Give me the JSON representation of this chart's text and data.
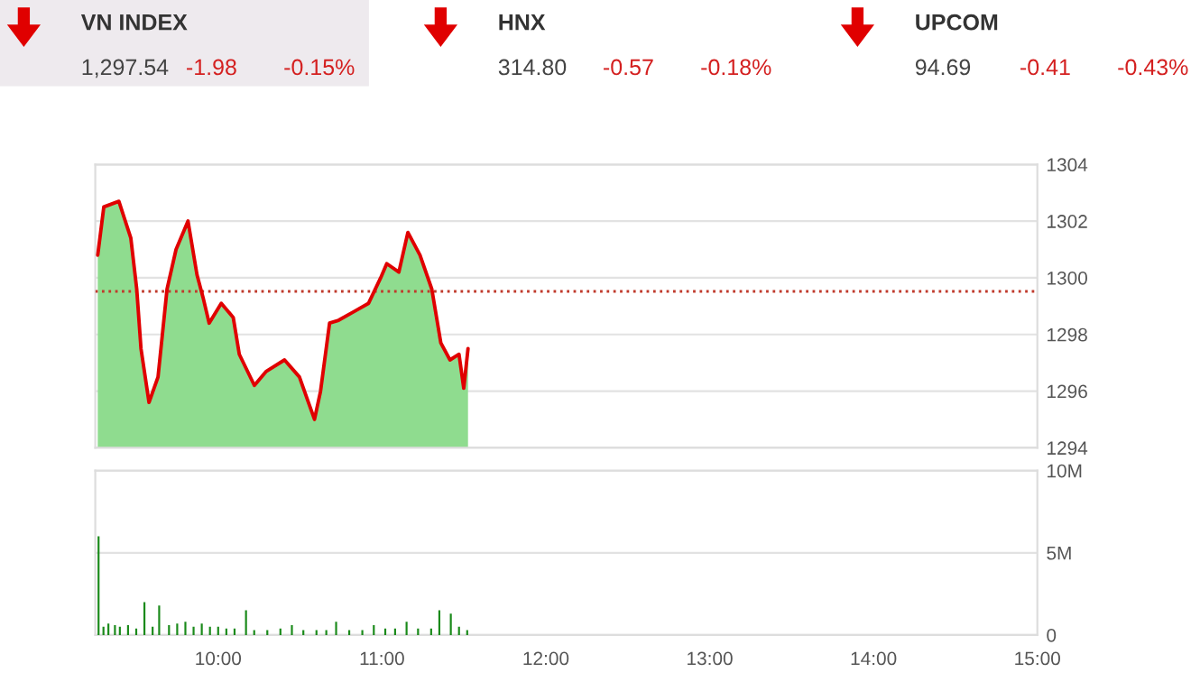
{
  "chart_data": [
    {
      "type": "other",
      "annotations": [
        "VN INDEX",
        "1,297.54",
        "-1.98",
        "-0.15%",
        "HNX",
        "314.80",
        "-0.57",
        "-0.18%",
        "UPCOM",
        "94.69",
        "-0.41",
        "-0.43%"
      ]
    },
    {
      "type": "area",
      "x": [
        9.265,
        9.302,
        9.394,
        9.467,
        9.503,
        9.529,
        9.578,
        9.633,
        9.688,
        9.743,
        9.816,
        9.871,
        9.908,
        9.945,
        10.019,
        10.092,
        10.129,
        10.221,
        10.294,
        10.405,
        10.496,
        10.551,
        10.588,
        10.625,
        10.68,
        10.735,
        10.827,
        10.918,
        10.992,
        11.029,
        11.103,
        11.158,
        11.232,
        11.304,
        11.359,
        11.415,
        11.47,
        11.499,
        11.525
      ],
      "series": [
        {
          "type": "area",
          "color": "#8fdc8f",
          "values": [
            1300.8,
            1302.5,
            1302.7,
            1301.4,
            1299.6,
            1297.5,
            1295.6,
            1296.5,
            1299.6,
            1301.0,
            1302.0,
            1300.1,
            1299.3,
            1298.4,
            1299.1,
            1298.6,
            1297.3,
            1296.2,
            1296.7,
            1297.1,
            1296.5,
            1295.6,
            1295.0,
            1296.0,
            1298.4,
            1298.5,
            1298.8,
            1299.1,
            1300.0,
            1300.5,
            1300.2,
            1301.6,
            1300.8,
            1299.6,
            1297.7,
            1297.1,
            1297.3,
            1296.1,
            1297.5
          ]
        },
        {
          "type": "line",
          "color": "#e00000",
          "values": [
            1300.8,
            1302.5,
            1302.7,
            1301.4,
            1299.6,
            1297.5,
            1295.6,
            1296.5,
            1299.6,
            1301.0,
            1302.0,
            1300.1,
            1299.3,
            1298.4,
            1299.1,
            1298.6,
            1297.3,
            1296.2,
            1296.7,
            1297.1,
            1296.5,
            1295.6,
            1295.0,
            1296.0,
            1298.4,
            1298.5,
            1298.8,
            1299.1,
            1300.0,
            1300.5,
            1300.2,
            1301.6,
            1300.8,
            1299.6,
            1297.7,
            1297.1,
            1297.3,
            1296.1,
            1297.5
          ]
        }
      ],
      "xlim": [
        9.25,
        15
      ],
      "ylim": [
        1294,
        1304
      ],
      "yticks": [
        1294,
        1296,
        1298,
        1300,
        1302,
        1304
      ],
      "tick_labels": "y",
      "grid": "y",
      "ref_lines": [
        {
          "axis": "y",
          "value": 1299.52,
          "color": "#c0392b",
          "line_style": "dotted"
        }
      ]
    },
    {
      "type": "bar",
      "x": [
        9.27,
        9.3,
        9.33,
        9.37,
        9.4,
        9.45,
        9.5,
        9.55,
        9.6,
        9.64,
        9.7,
        9.75,
        9.8,
        9.85,
        9.9,
        9.95,
        10.0,
        10.05,
        10.1,
        10.17,
        10.22,
        10.3,
        10.38,
        10.45,
        10.52,
        10.6,
        10.66,
        10.72,
        10.8,
        10.88,
        10.95,
        11.02,
        11.08,
        11.15,
        11.22,
        11.3,
        11.35,
        11.42,
        11.47,
        11.52
      ],
      "series": [
        {
          "color": "#1a8a1a",
          "values": [
            6.0,
            0.5,
            0.7,
            0.6,
            0.5,
            0.6,
            0.4,
            2.0,
            0.5,
            1.8,
            0.6,
            0.7,
            0.8,
            0.5,
            0.7,
            0.5,
            0.5,
            0.4,
            0.4,
            1.5,
            0.3,
            0.3,
            0.4,
            0.6,
            0.3,
            0.3,
            0.3,
            0.8,
            0.3,
            0.3,
            0.6,
            0.4,
            0.4,
            0.8,
            0.4,
            0.4,
            1.5,
            1.3,
            0.5,
            0.3
          ]
        }
      ],
      "xlim": [
        9.25,
        15
      ],
      "xticks": [
        {
          "value": 10,
          "label": "10:00"
        },
        {
          "value": 11,
          "label": "11:00"
        },
        {
          "value": 12,
          "label": "12:00"
        },
        {
          "value": 13,
          "label": "13:00"
        },
        {
          "value": 14,
          "label": "14:00"
        },
        {
          "value": 15,
          "label": "15:00"
        }
      ],
      "ylim": [
        0,
        10
      ],
      "yticks": [
        {
          "value": 0,
          "label": "0"
        },
        {
          "value": 5,
          "label": "5M"
        },
        {
          "value": 10,
          "label": "10M"
        }
      ],
      "grid": "y"
    }
  ]
}
